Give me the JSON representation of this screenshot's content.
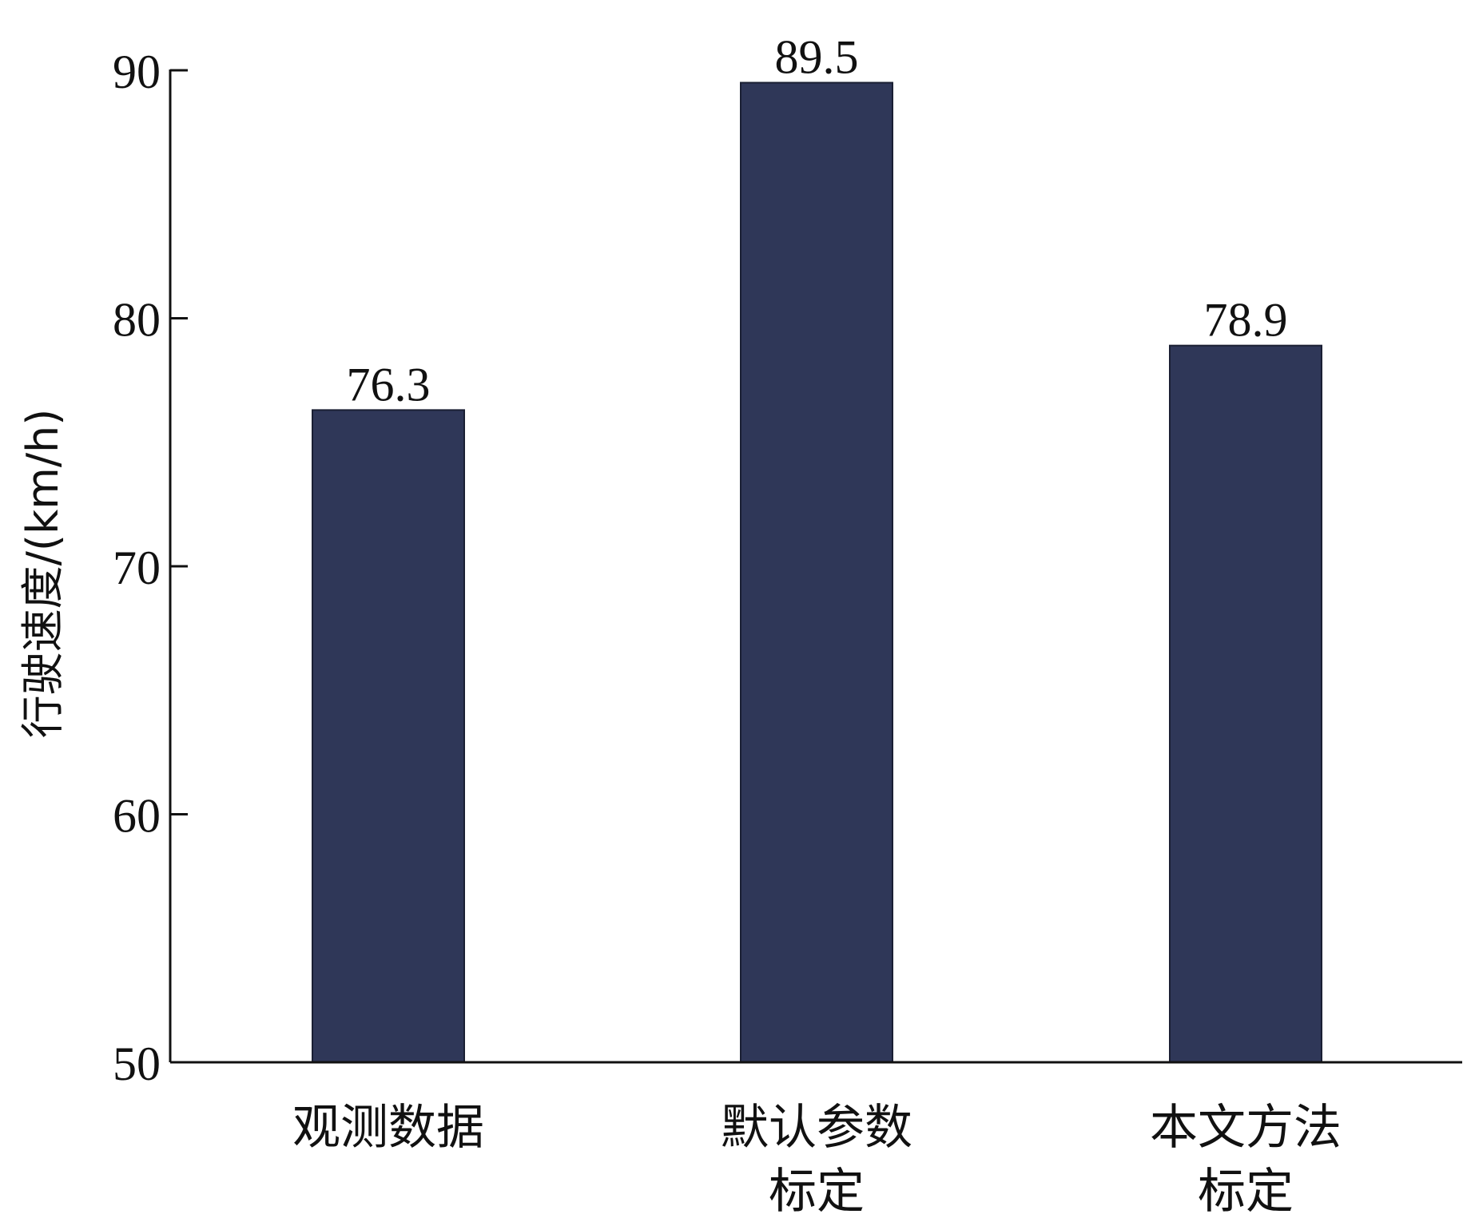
{
  "chart_data": {
    "type": "bar",
    "categories": [
      [
        "观测数据"
      ],
      [
        "默认参数",
        "标定"
      ],
      [
        "本文方法",
        "标定"
      ]
    ],
    "values": [
      76.3,
      89.5,
      78.9
    ],
    "value_labels": [
      "76.3",
      "89.5",
      "78.9"
    ],
    "title": "",
    "xlabel": "",
    "ylabel": "行驶速度/(km/h)",
    "ylim": [
      50,
      90
    ],
    "yticks": [
      50,
      60,
      70,
      80,
      90
    ],
    "grid": false,
    "legend": "none",
    "bar_color": "#2f3758"
  }
}
